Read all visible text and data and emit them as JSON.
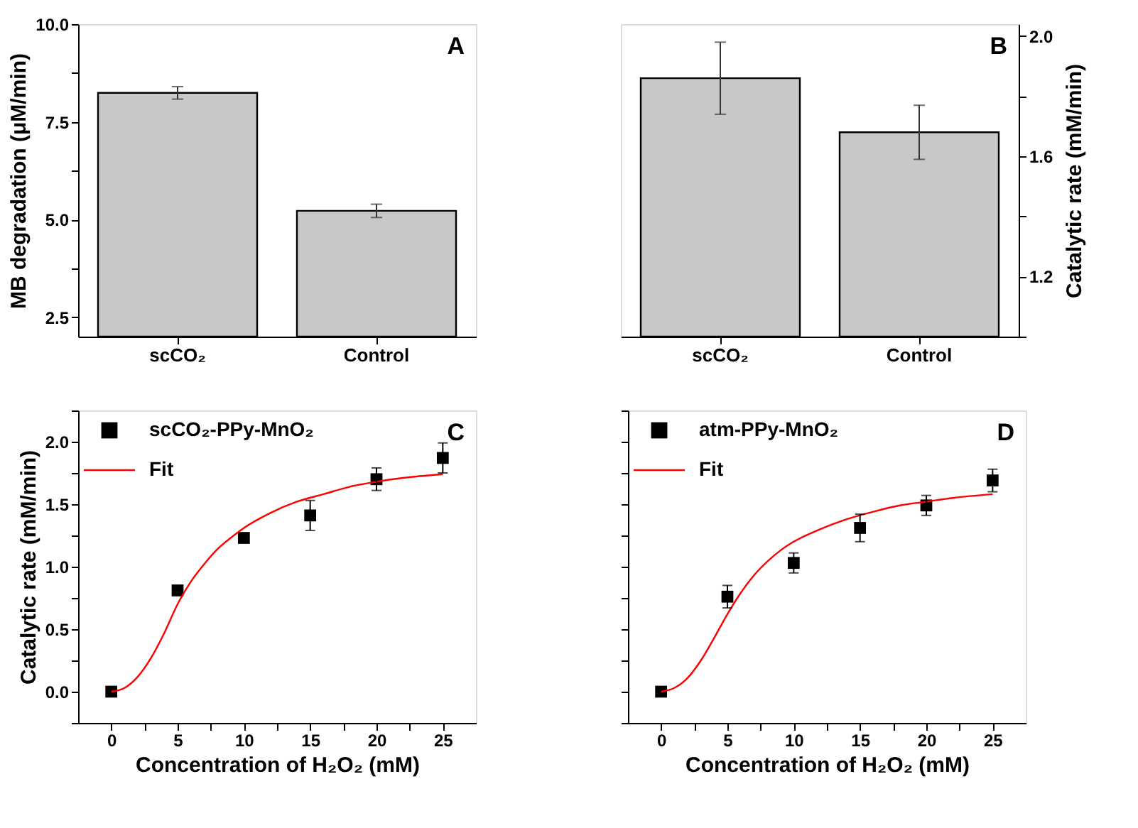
{
  "chart_data": [
    {
      "type": "bar",
      "categories": [
        "scCO₂",
        "Control"
      ],
      "values": [
        8.24,
        5.22
      ],
      "errors": [
        0.16,
        0.17
      ],
      "color": "#c8c8c8",
      "ylabel": "MB degradation (μM/min)",
      "ylim": [
        2.0,
        10.0
      ],
      "yticks": [
        {
          "value": 2.5,
          "label": "2.5"
        },
        {
          "value": 3.75,
          "label": null
        },
        {
          "value": 5,
          "label": "5.0"
        },
        {
          "value": 6.25,
          "label": null
        },
        {
          "value": 7.5,
          "label": "7.5"
        },
        {
          "value": 8.75,
          "label": null
        },
        {
          "value": 10,
          "label": "10.0"
        }
      ],
      "grid": false,
      "annotations": [
        "A"
      ]
    },
    {
      "type": "bar",
      "categories": [
        "scCO₂",
        "Control"
      ],
      "series": [
        {
          "color": "#c8c8c8",
          "values": [
            1.86,
            1.68
          ],
          "errors": [
            0.12,
            0.09
          ],
          "axis": "y2"
        }
      ],
      "y2label": "Catalytic rate (mM/min)",
      "y2lim": [
        1.0,
        2.04
      ],
      "y2ticks": [
        {
          "value": 1.0,
          "label": null
        },
        {
          "value": 1.2,
          "label": "1.2"
        },
        {
          "value": 1.4,
          "label": null
        },
        {
          "value": 1.6,
          "label": "1.6"
        },
        {
          "value": 1.8,
          "label": null
        },
        {
          "value": 2.0,
          "label": "2.0"
        }
      ],
      "grid": false,
      "annotations": [
        "B"
      ]
    },
    {
      "type": "scatter",
      "xlabel": "Concentration of H₂O₂ (mM)",
      "ylabel": "Catalytic rate (mM/min)",
      "xlim": [
        -2.5,
        27.5
      ],
      "xticks": [
        0,
        {
          "value": 2.5,
          "label": null
        },
        5,
        {
          "value": 7.5,
          "label": null
        },
        10,
        {
          "value": 12.5,
          "label": null
        },
        15,
        {
          "value": 17.5,
          "label": null
        },
        20,
        {
          "value": 22.5,
          "label": null
        },
        25
      ],
      "ylim": [
        -0.25,
        2.25
      ],
      "yticks": [
        {
          "value": -0.25,
          "label": null
        },
        {
          "value": 0,
          "label": "0.0"
        },
        {
          "value": 0.25,
          "label": null
        },
        {
          "value": 0.5,
          "label": "0.5"
        },
        {
          "value": 0.75,
          "label": null
        },
        {
          "value": 1.0,
          "label": "1.0"
        },
        {
          "value": 1.25,
          "label": null
        },
        {
          "value": 1.5,
          "label": "1.5"
        },
        {
          "value": 1.75,
          "label": null
        },
        {
          "value": 2.0,
          "label": "2.0"
        },
        {
          "value": 2.25,
          "label": null
        }
      ],
      "grid": false,
      "legend": "top left",
      "annotations": [
        "C"
      ],
      "series": [
        {
          "name": "scCO₂-PPy-MnO₂",
          "color": "#000000",
          "marker": "square",
          "x": [
            0,
            5,
            10,
            15,
            20,
            25
          ],
          "values": [
            0,
            0.81,
            1.23,
            1.41,
            1.7,
            1.87
          ],
          "errors": [
            null,
            null,
            null,
            0.12,
            0.09,
            0.12
          ]
        },
        {
          "name": "Fit",
          "type": "line",
          "color": "#ff0000",
          "x": [
            0,
            1,
            2,
            3,
            4,
            5,
            6,
            7,
            8,
            9,
            10,
            12,
            14,
            16,
            18,
            20,
            22,
            25
          ],
          "values": [
            0,
            0.03,
            0.12,
            0.27,
            0.47,
            0.7,
            0.88,
            1.02,
            1.14,
            1.23,
            1.31,
            1.43,
            1.52,
            1.58,
            1.64,
            1.68,
            1.71,
            1.74
          ]
        }
      ]
    },
    {
      "type": "scatter",
      "xlabel": "Concentration of H₂O₂ (mM)",
      "xlim": [
        -2.5,
        27.5
      ],
      "xticks": [
        0,
        {
          "value": 2.5,
          "label": null
        },
        5,
        {
          "value": 7.5,
          "label": null
        },
        10,
        {
          "value": 12.5,
          "label": null
        },
        15,
        {
          "value": 17.5,
          "label": null
        },
        20,
        {
          "value": 22.5,
          "label": null
        },
        25
      ],
      "ylim": [
        -0.25,
        2.25
      ],
      "yticks": [
        {
          "value": -0.25,
          "label": null
        },
        {
          "value": 0,
          "label": null
        },
        {
          "value": 0.25,
          "label": null
        },
        {
          "value": 0.5,
          "label": null
        },
        {
          "value": 0.75,
          "label": null
        },
        {
          "value": 1.0,
          "label": null
        },
        {
          "value": 1.25,
          "label": null
        },
        {
          "value": 1.5,
          "label": null
        },
        {
          "value": 1.75,
          "label": null
        },
        {
          "value": 2.0,
          "label": null
        },
        {
          "value": 2.25,
          "label": null
        }
      ],
      "tick_labels": "x",
      "grid": false,
      "legend": "top left",
      "annotations": [
        "D"
      ],
      "series": [
        {
          "name": "atm-PPy-MnO₂",
          "color": "#000000",
          "marker": "square",
          "x": [
            0,
            5,
            10,
            15,
            20,
            25
          ],
          "values": [
            0,
            0.76,
            1.03,
            1.31,
            1.49,
            1.69
          ],
          "errors": [
            null,
            0.09,
            0.08,
            0.11,
            0.08,
            0.09
          ]
        },
        {
          "name": "Fit",
          "type": "line",
          "color": "#ff0000",
          "x": [
            0,
            1,
            2,
            3,
            4,
            5,
            6,
            7,
            8,
            9,
            10,
            12,
            14,
            16,
            18,
            20,
            22,
            25
          ],
          "values": [
            0,
            0.03,
            0.11,
            0.25,
            0.43,
            0.62,
            0.79,
            0.93,
            1.04,
            1.13,
            1.2,
            1.3,
            1.38,
            1.44,
            1.49,
            1.52,
            1.55,
            1.58
          ]
        }
      ]
    }
  ]
}
